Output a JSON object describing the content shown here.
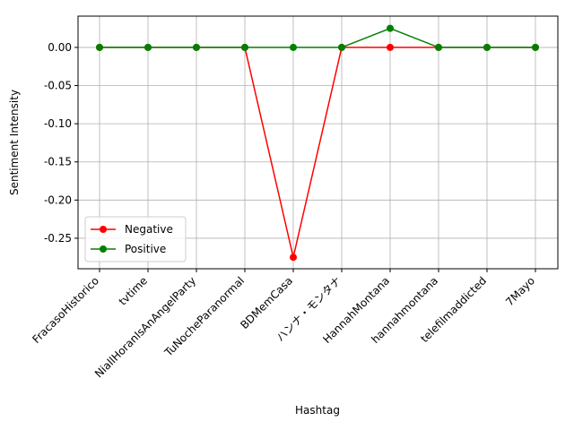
{
  "chart_data": {
    "type": "line",
    "x_label": "Hashtag",
    "y_label": "Sentiment Intensity",
    "categories": [
      "FracasoHistorico",
      "tvtime",
      "NiallHoranIsAnAngelParty",
      "TuNocheParanormal",
      "BDMemCasa",
      "ハンナ・モンタナ",
      "HannahMontana",
      "hannahmontana",
      "telefilmaddicted",
      "7Mayo"
    ],
    "series": [
      {
        "name": "Negative",
        "color": "#ff0000",
        "values": [
          0,
          0,
          0,
          0,
          -0.275,
          0,
          0,
          0,
          0,
          0
        ]
      },
      {
        "name": "Positive",
        "color": "#008000",
        "values": [
          0,
          0,
          0,
          0,
          0,
          0,
          0.025,
          0,
          0,
          0
        ]
      }
    ],
    "ylim": [
      -0.29,
      0.041
    ],
    "yticks": [
      {
        "value": 0,
        "label": "0.00"
      },
      {
        "value": -0.05,
        "label": "-0.05"
      },
      {
        "value": -0.1,
        "label": "-0.10"
      },
      {
        "value": -0.15,
        "label": "-0.15"
      },
      {
        "value": -0.2,
        "label": "-0.20"
      },
      {
        "value": -0.25,
        "label": "-0.25"
      }
    ],
    "grid": true,
    "legend": "lower left"
  }
}
